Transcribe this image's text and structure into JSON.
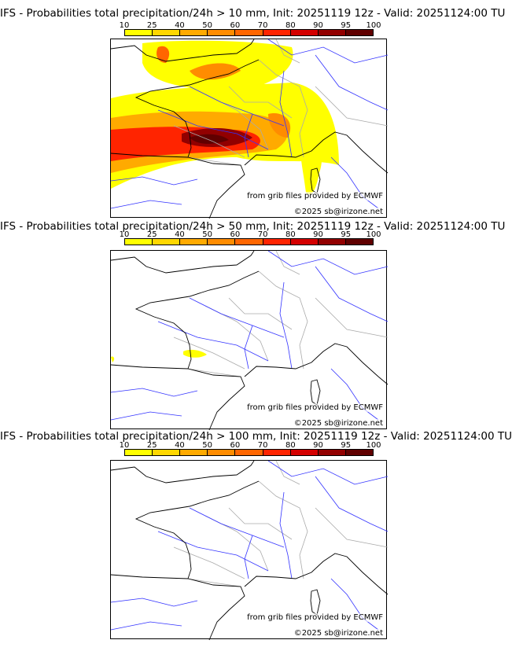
{
  "colorbar": {
    "ticks": [
      "10",
      "25",
      "40",
      "50",
      "60",
      "70",
      "80",
      "90",
      "95",
      "100"
    ],
    "colors": [
      "#ffff00",
      "#ffd700",
      "#ffaa00",
      "#ff8c00",
      "#ff6600",
      "#ff2400",
      "#d40000",
      "#920000",
      "#600000"
    ]
  },
  "panels": [
    {
      "title": "IFS - Probabilities total precipitation/24h > 10 mm, Init: 20251119 12z - Valid: 20251124:00 TU",
      "threshold_mm": 10,
      "has_field": "large"
    },
    {
      "title": "IFS - Probabilities total precipitation/24h > 50 mm, Init: 20251119 12z - Valid: 20251124:00 TU",
      "threshold_mm": 50,
      "has_field": "small"
    },
    {
      "title": "IFS - Probabilities total precipitation/24h > 100 mm, Init: 20251119 12z - Valid: 20251124:00 TU",
      "threshold_mm": 100,
      "has_field": "none"
    }
  ],
  "credits": {
    "source": "from grib files provided by ECMWF",
    "copyright": "©2025 sb@irizone.net"
  }
}
